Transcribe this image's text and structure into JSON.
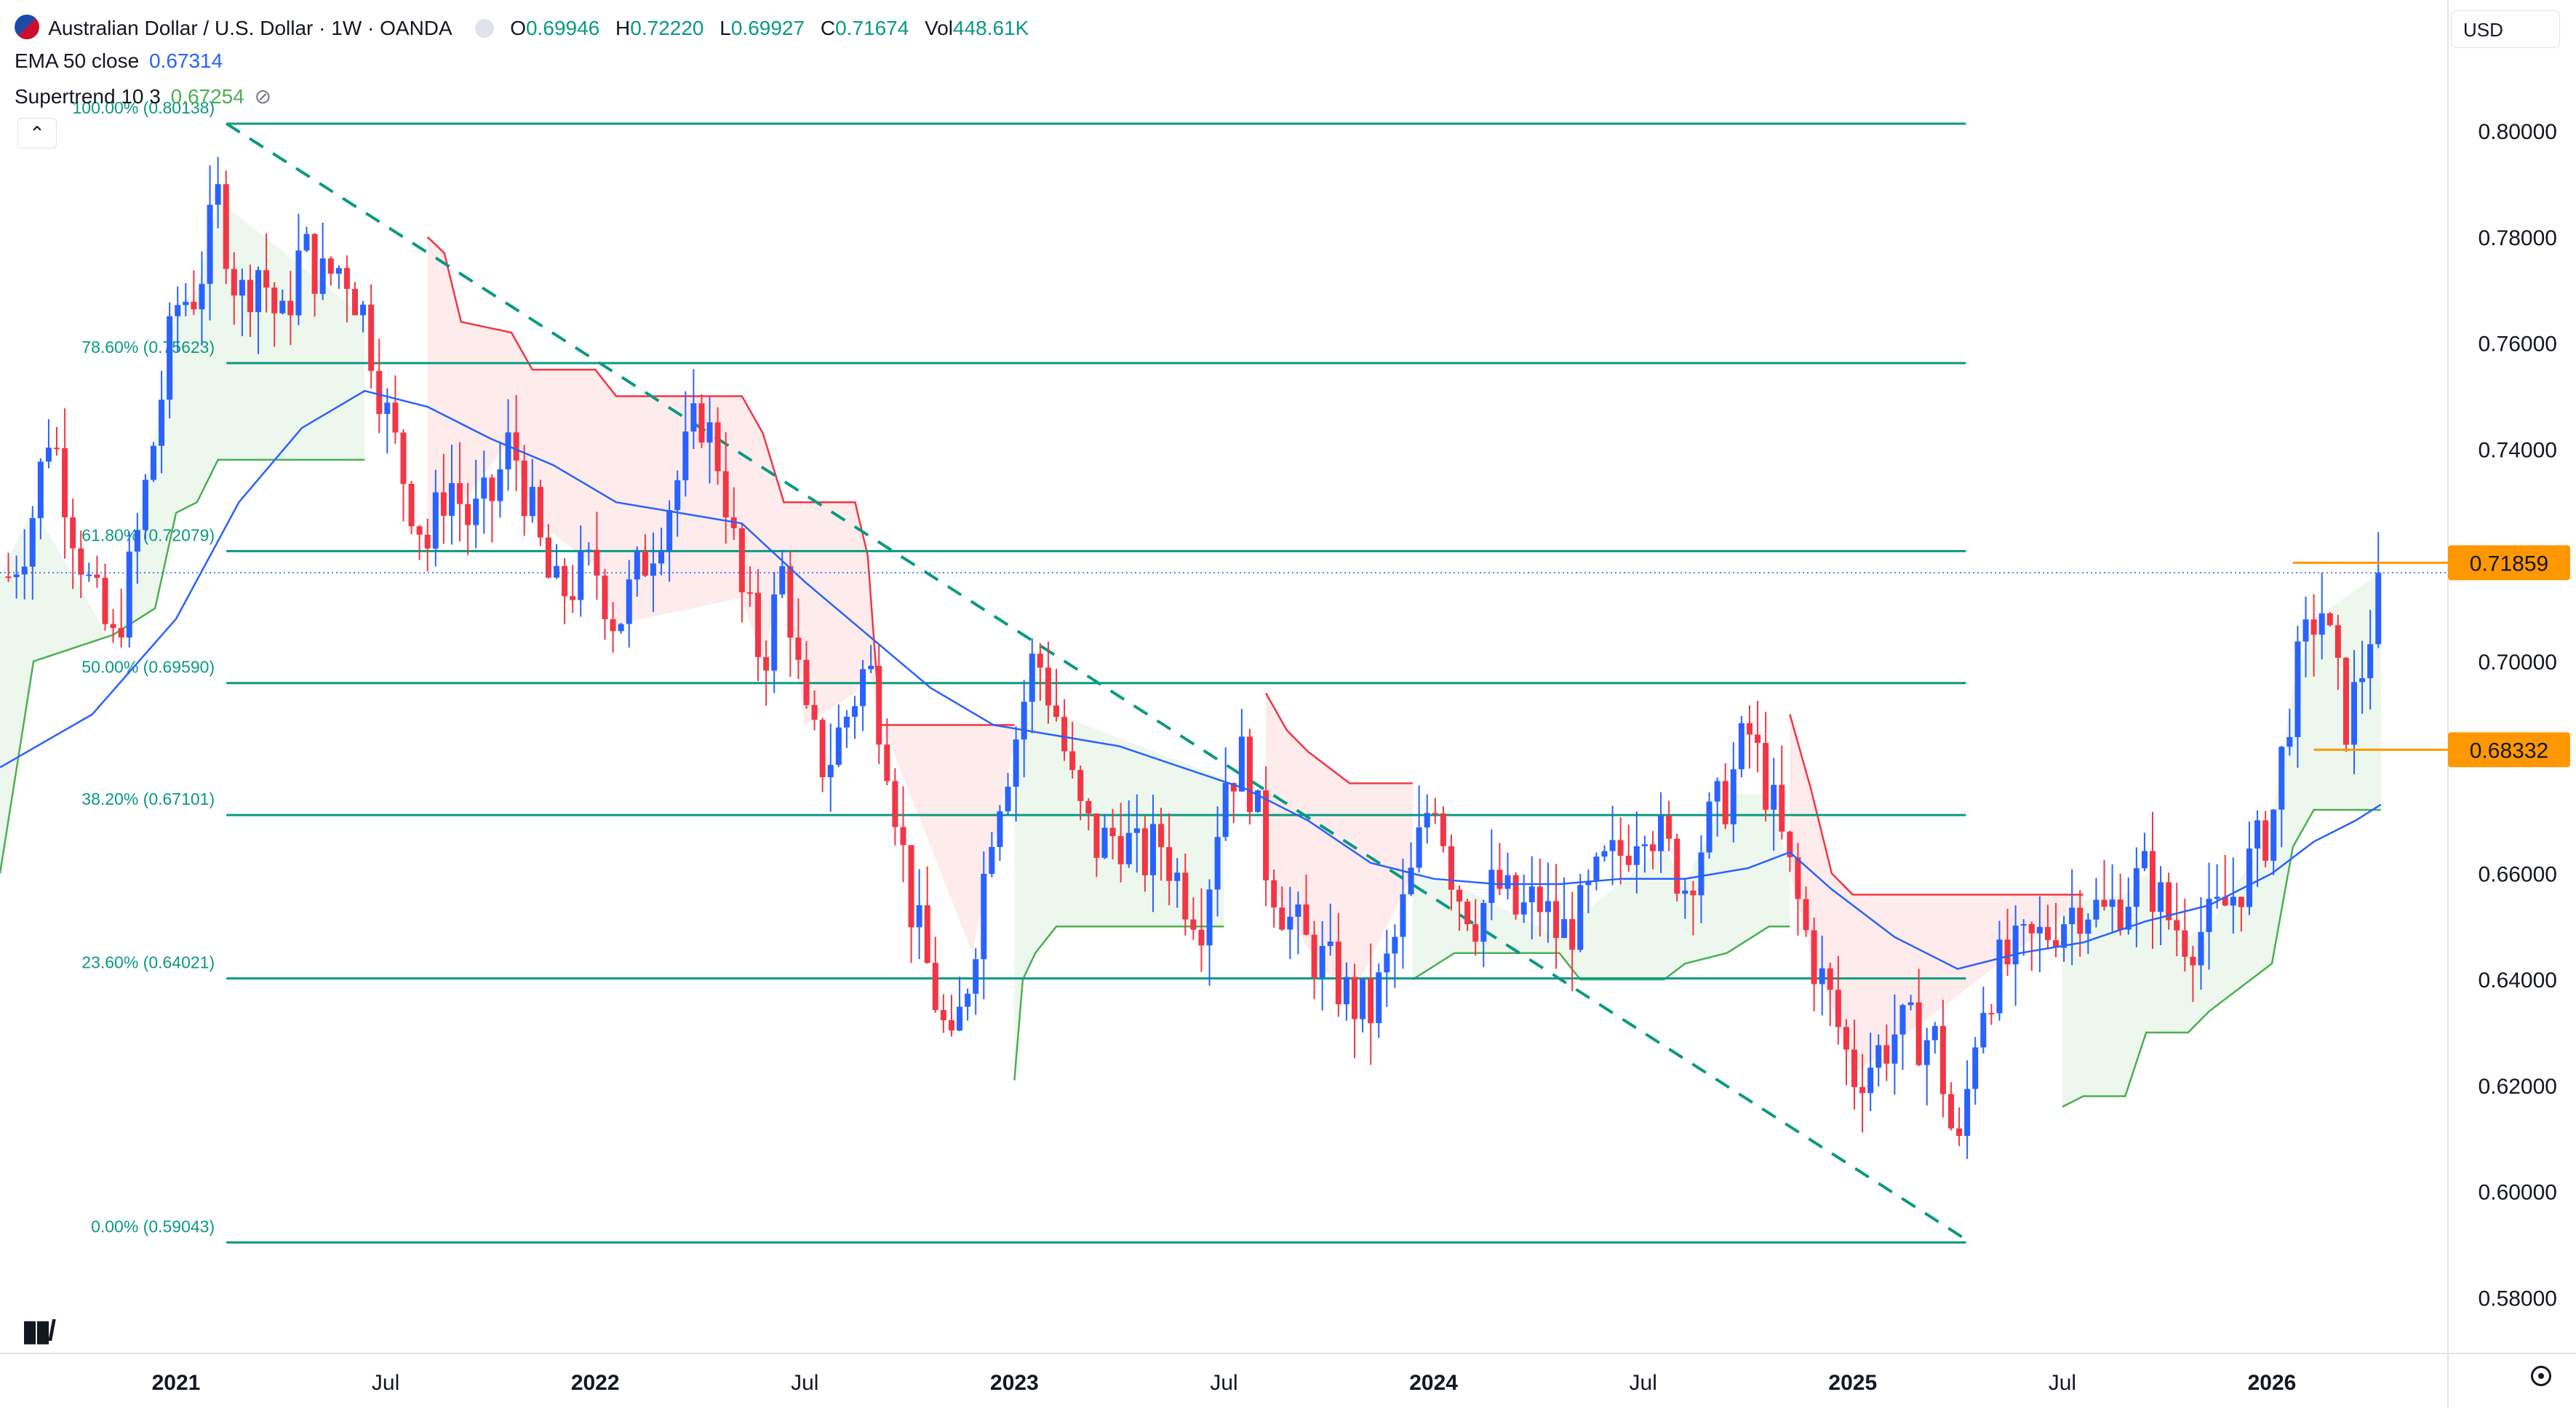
{
  "header": {
    "symbol_title": "Australian Dollar / U.S. Dollar · 1W · OANDA",
    "ohlc": [
      {
        "key": "O",
        "value": "0.69946"
      },
      {
        "key": "H",
        "value": "0.72220"
      },
      {
        "key": "L",
        "value": "0.69927"
      },
      {
        "key": "C",
        "value": "0.71674"
      },
      {
        "key": "Vol",
        "value": "448.61K"
      }
    ],
    "ema_label": "EMA 50 close",
    "ema_value": "0.67314",
    "supertrend_label": "Supertrend 10 3",
    "supertrend_value": "0.67254",
    "currency": "USD"
  },
  "colors": {
    "up": "#2962ff",
    "down": "#f23645",
    "fib_line": "#0a9a80",
    "ema": "#2962ff",
    "supertrend_up": "#4caf50",
    "supertrend_down": "#f23645",
    "price_tag": "#ff9800"
  },
  "chart_data": {
    "type": "candlestick",
    "title": "Australian Dollar / U.S. Dollar · 1W · OANDA",
    "y_axis": {
      "ticks": [
        "0.80000",
        "0.78000",
        "0.76000",
        "0.74000",
        "0.72000",
        "0.70000",
        "0.68000",
        "0.66000",
        "0.64000",
        "0.62000",
        "0.60000",
        "0.58000"
      ],
      "range": [
        0.5695,
        0.8247
      ]
    },
    "x_axis": {
      "ticks": [
        {
          "label": "2021",
          "t": 2021.0
        },
        {
          "label": "Jul",
          "t": 2021.5
        },
        {
          "label": "2022",
          "t": 2022.0
        },
        {
          "label": "Jul",
          "t": 2022.5
        },
        {
          "label": "2023",
          "t": 2023.0
        },
        {
          "label": "Jul",
          "t": 2023.5
        },
        {
          "label": "2024",
          "t": 2024.0
        },
        {
          "label": "Jul",
          "t": 2024.5
        },
        {
          "label": "2025",
          "t": 2025.0
        },
        {
          "label": "Jul",
          "t": 2025.5
        },
        {
          "label": "2026",
          "t": 2026.0
        }
      ],
      "range": [
        2020.58,
        2026.42
      ]
    },
    "fib_levels": [
      {
        "label": "100.00% (0.80138)",
        "value": 0.80138
      },
      {
        "label": "78.60% (0.75623)",
        "value": 0.75623
      },
      {
        "label": "61.80% (0.72079)",
        "value": 0.72079
      },
      {
        "label": "50.00% (0.69590)",
        "value": 0.6959
      },
      {
        "label": "38.20% (0.67101)",
        "value": 0.67101
      },
      {
        "label": "23.60% (0.64021)",
        "value": 0.64021
      },
      {
        "label": "0.00% (0.59043)",
        "value": 0.59043
      }
    ],
    "fib_span": [
      2021.12,
      2025.27
    ],
    "trendline": {
      "from": [
        2021.12,
        0.8014
      ],
      "to": [
        2025.26,
        0.5915
      ]
    },
    "price_tags": [
      {
        "label": "0.71859",
        "value": 0.71859,
        "from": 2026.05
      },
      {
        "label": "0.68332",
        "value": 0.68332,
        "from": 2026.1
      }
    ],
    "last_price": 0.7167,
    "candle_anchors": [
      [
        2020.6,
        0.716
      ],
      [
        2020.65,
        0.725
      ],
      [
        2020.7,
        0.745
      ],
      [
        2020.75,
        0.727
      ],
      [
        2020.8,
        0.712
      ],
      [
        2020.85,
        0.703
      ],
      [
        2020.9,
        0.72
      ],
      [
        2020.95,
        0.743
      ],
      [
        2021.0,
        0.767
      ],
      [
        2021.05,
        0.77
      ],
      [
        2021.1,
        0.787
      ],
      [
        2021.15,
        0.768
      ],
      [
        2021.2,
        0.775
      ],
      [
        2021.25,
        0.762
      ],
      [
        2021.3,
        0.778
      ],
      [
        2021.35,
        0.772
      ],
      [
        2021.4,
        0.775
      ],
      [
        2021.45,
        0.765
      ],
      [
        2021.5,
        0.747
      ],
      [
        2021.55,
        0.733
      ],
      [
        2021.6,
        0.722
      ],
      [
        2021.65,
        0.735
      ],
      [
        2021.7,
        0.726
      ],
      [
        2021.75,
        0.73
      ],
      [
        2021.8,
        0.742
      ],
      [
        2021.85,
        0.727
      ],
      [
        2021.9,
        0.712
      ],
      [
        2021.95,
        0.715
      ],
      [
        2022.0,
        0.718
      ],
      [
        2022.05,
        0.707
      ],
      [
        2022.1,
        0.716
      ],
      [
        2022.15,
        0.725
      ],
      [
        2022.2,
        0.735
      ],
      [
        2022.25,
        0.747
      ],
      [
        2022.3,
        0.737
      ],
      [
        2022.35,
        0.712
      ],
      [
        2022.4,
        0.7
      ],
      [
        2022.45,
        0.718
      ],
      [
        2022.5,
        0.688
      ],
      [
        2022.55,
        0.68
      ],
      [
        2022.6,
        0.69
      ],
      [
        2022.65,
        0.7
      ],
      [
        2022.7,
        0.682
      ],
      [
        2022.75,
        0.655
      ],
      [
        2022.8,
        0.64
      ],
      [
        2022.85,
        0.625
      ],
      [
        2022.9,
        0.645
      ],
      [
        2022.95,
        0.672
      ],
      [
        2023.0,
        0.685
      ],
      [
        2023.05,
        0.702
      ],
      [
        2023.1,
        0.69
      ],
      [
        2023.15,
        0.672
      ],
      [
        2023.2,
        0.665
      ],
      [
        2023.25,
        0.668
      ],
      [
        2023.3,
        0.662
      ],
      [
        2023.35,
        0.666
      ],
      [
        2023.4,
        0.657
      ],
      [
        2023.45,
        0.652
      ],
      [
        2023.5,
        0.678
      ],
      [
        2023.55,
        0.682
      ],
      [
        2023.6,
        0.662
      ],
      [
        2023.65,
        0.652
      ],
      [
        2023.7,
        0.646
      ],
      [
        2023.75,
        0.642
      ],
      [
        2023.8,
        0.636
      ],
      [
        2023.85,
        0.634
      ],
      [
        2023.9,
        0.645
      ],
      [
        2023.95,
        0.66
      ],
      [
        2024.0,
        0.677
      ],
      [
        2024.05,
        0.658
      ],
      [
        2024.1,
        0.652
      ],
      [
        2024.15,
        0.658
      ],
      [
        2024.2,
        0.652
      ],
      [
        2024.25,
        0.655
      ],
      [
        2024.3,
        0.648
      ],
      [
        2024.35,
        0.652
      ],
      [
        2024.4,
        0.66
      ],
      [
        2024.45,
        0.664
      ],
      [
        2024.5,
        0.672
      ],
      [
        2024.55,
        0.665
      ],
      [
        2024.6,
        0.658
      ],
      [
        2024.65,
        0.668
      ],
      [
        2024.7,
        0.675
      ],
      [
        2024.75,
        0.687
      ],
      [
        2024.8,
        0.675
      ],
      [
        2024.85,
        0.66
      ],
      [
        2024.9,
        0.645
      ],
      [
        2024.95,
        0.635
      ],
      [
        2025.0,
        0.622
      ],
      [
        2025.05,
        0.625
      ],
      [
        2025.1,
        0.63
      ],
      [
        2025.15,
        0.63
      ],
      [
        2025.2,
        0.628
      ],
      [
        2025.25,
        0.605
      ],
      [
        2025.3,
        0.635
      ],
      [
        2025.35,
        0.642
      ],
      [
        2025.4,
        0.645
      ],
      [
        2025.45,
        0.648
      ],
      [
        2025.5,
        0.652
      ],
      [
        2025.55,
        0.655
      ],
      [
        2025.6,
        0.652
      ],
      [
        2025.65,
        0.656
      ],
      [
        2025.7,
        0.66
      ],
      [
        2025.75,
        0.652
      ],
      [
        2025.8,
        0.648
      ],
      [
        2025.85,
        0.65
      ],
      [
        2025.9,
        0.655
      ],
      [
        2025.95,
        0.662
      ],
      [
        2026.0,
        0.67
      ],
      [
        2026.05,
        0.695
      ],
      [
        2026.1,
        0.708
      ],
      [
        2026.12,
        0.71
      ],
      [
        2026.15,
        0.698
      ],
      [
        2026.18,
        0.688
      ],
      [
        2026.22,
        0.7
      ],
      [
        2026.26,
        0.7167
      ]
    ],
    "ema": [
      [
        2020.58,
        0.68
      ],
      [
        2020.8,
        0.69
      ],
      [
        2021.0,
        0.708
      ],
      [
        2021.15,
        0.73
      ],
      [
        2021.3,
        0.744
      ],
      [
        2021.45,
        0.751
      ],
      [
        2021.6,
        0.748
      ],
      [
        2021.75,
        0.742
      ],
      [
        2021.9,
        0.737
      ],
      [
        2022.05,
        0.73
      ],
      [
        2022.2,
        0.728
      ],
      [
        2022.35,
        0.726
      ],
      [
        2022.5,
        0.715
      ],
      [
        2022.65,
        0.705
      ],
      [
        2022.8,
        0.695
      ],
      [
        2022.95,
        0.688
      ],
      [
        2023.1,
        0.686
      ],
      [
        2023.25,
        0.684
      ],
      [
        2023.4,
        0.68
      ],
      [
        2023.55,
        0.676
      ],
      [
        2023.7,
        0.67
      ],
      [
        2023.85,
        0.662
      ],
      [
        2024.0,
        0.659
      ],
      [
        2024.15,
        0.658
      ],
      [
        2024.3,
        0.658
      ],
      [
        2024.45,
        0.659
      ],
      [
        2024.6,
        0.659
      ],
      [
        2024.75,
        0.661
      ],
      [
        2024.85,
        0.664
      ],
      [
        2024.95,
        0.657
      ],
      [
        2025.1,
        0.648
      ],
      [
        2025.25,
        0.642
      ],
      [
        2025.4,
        0.645
      ],
      [
        2025.55,
        0.647
      ],
      [
        2025.7,
        0.651
      ],
      [
        2025.85,
        0.654
      ],
      [
        2026.0,
        0.66
      ],
      [
        2026.1,
        0.666
      ],
      [
        2026.2,
        0.67
      ],
      [
        2026.26,
        0.673
      ]
    ],
    "supertrend": [
      {
        "dir": "up",
        "points": [
          [
            2020.58,
            0.66
          ],
          [
            2020.66,
            0.7
          ],
          [
            2020.85,
            0.705
          ],
          [
            2020.95,
            0.71
          ],
          [
            2021.0,
            0.728
          ],
          [
            2021.05,
            0.73
          ],
          [
            2021.1,
            0.738
          ],
          [
            2021.45,
            0.738
          ]
        ]
      },
      {
        "dir": "down",
        "points": [
          [
            2021.6,
            0.78
          ],
          [
            2021.64,
            0.777
          ],
          [
            2021.68,
            0.764
          ],
          [
            2021.8,
            0.762
          ],
          [
            2021.85,
            0.755
          ],
          [
            2022.0,
            0.755
          ],
          [
            2022.05,
            0.75
          ],
          [
            2022.35,
            0.75
          ],
          [
            2022.4,
            0.743
          ],
          [
            2022.45,
            0.73
          ],
          [
            2022.5,
            0.73
          ],
          [
            2022.62,
            0.73
          ],
          [
            2022.65,
            0.72
          ],
          [
            2022.68,
            0.688
          ],
          [
            2022.9,
            0.688
          ],
          [
            2023.0,
            0.688
          ]
        ]
      },
      {
        "dir": "up",
        "points": [
          [
            2023.0,
            0.621
          ],
          [
            2023.02,
            0.64
          ],
          [
            2023.05,
            0.645
          ],
          [
            2023.1,
            0.65
          ],
          [
            2023.5,
            0.65
          ]
        ]
      },
      {
        "dir": "down",
        "points": [
          [
            2023.6,
            0.694
          ],
          [
            2023.65,
            0.687
          ],
          [
            2023.7,
            0.683
          ],
          [
            2023.8,
            0.677
          ],
          [
            2023.95,
            0.677
          ]
        ]
      },
      {
        "dir": "up",
        "points": [
          [
            2023.95,
            0.64
          ],
          [
            2024.05,
            0.645
          ],
          [
            2024.3,
            0.645
          ],
          [
            2024.35,
            0.64
          ],
          [
            2024.55,
            0.64
          ],
          [
            2024.6,
            0.643
          ],
          [
            2024.7,
            0.645
          ],
          [
            2024.8,
            0.65
          ],
          [
            2024.85,
            0.65
          ]
        ]
      },
      {
        "dir": "down",
        "points": [
          [
            2024.85,
            0.69
          ],
          [
            2024.9,
            0.676
          ],
          [
            2024.95,
            0.66
          ],
          [
            2025.0,
            0.656
          ],
          [
            2025.55,
            0.656
          ]
        ]
      },
      {
        "dir": "up",
        "points": [
          [
            2025.5,
            0.616
          ],
          [
            2025.55,
            0.618
          ],
          [
            2025.65,
            0.618
          ],
          [
            2025.7,
            0.63
          ],
          [
            2025.8,
            0.63
          ],
          [
            2025.85,
            0.634
          ],
          [
            2025.95,
            0.64
          ],
          [
            2026.0,
            0.643
          ],
          [
            2026.05,
            0.665
          ],
          [
            2026.1,
            0.672
          ],
          [
            2026.26,
            0.672
          ]
        ]
      }
    ]
  }
}
